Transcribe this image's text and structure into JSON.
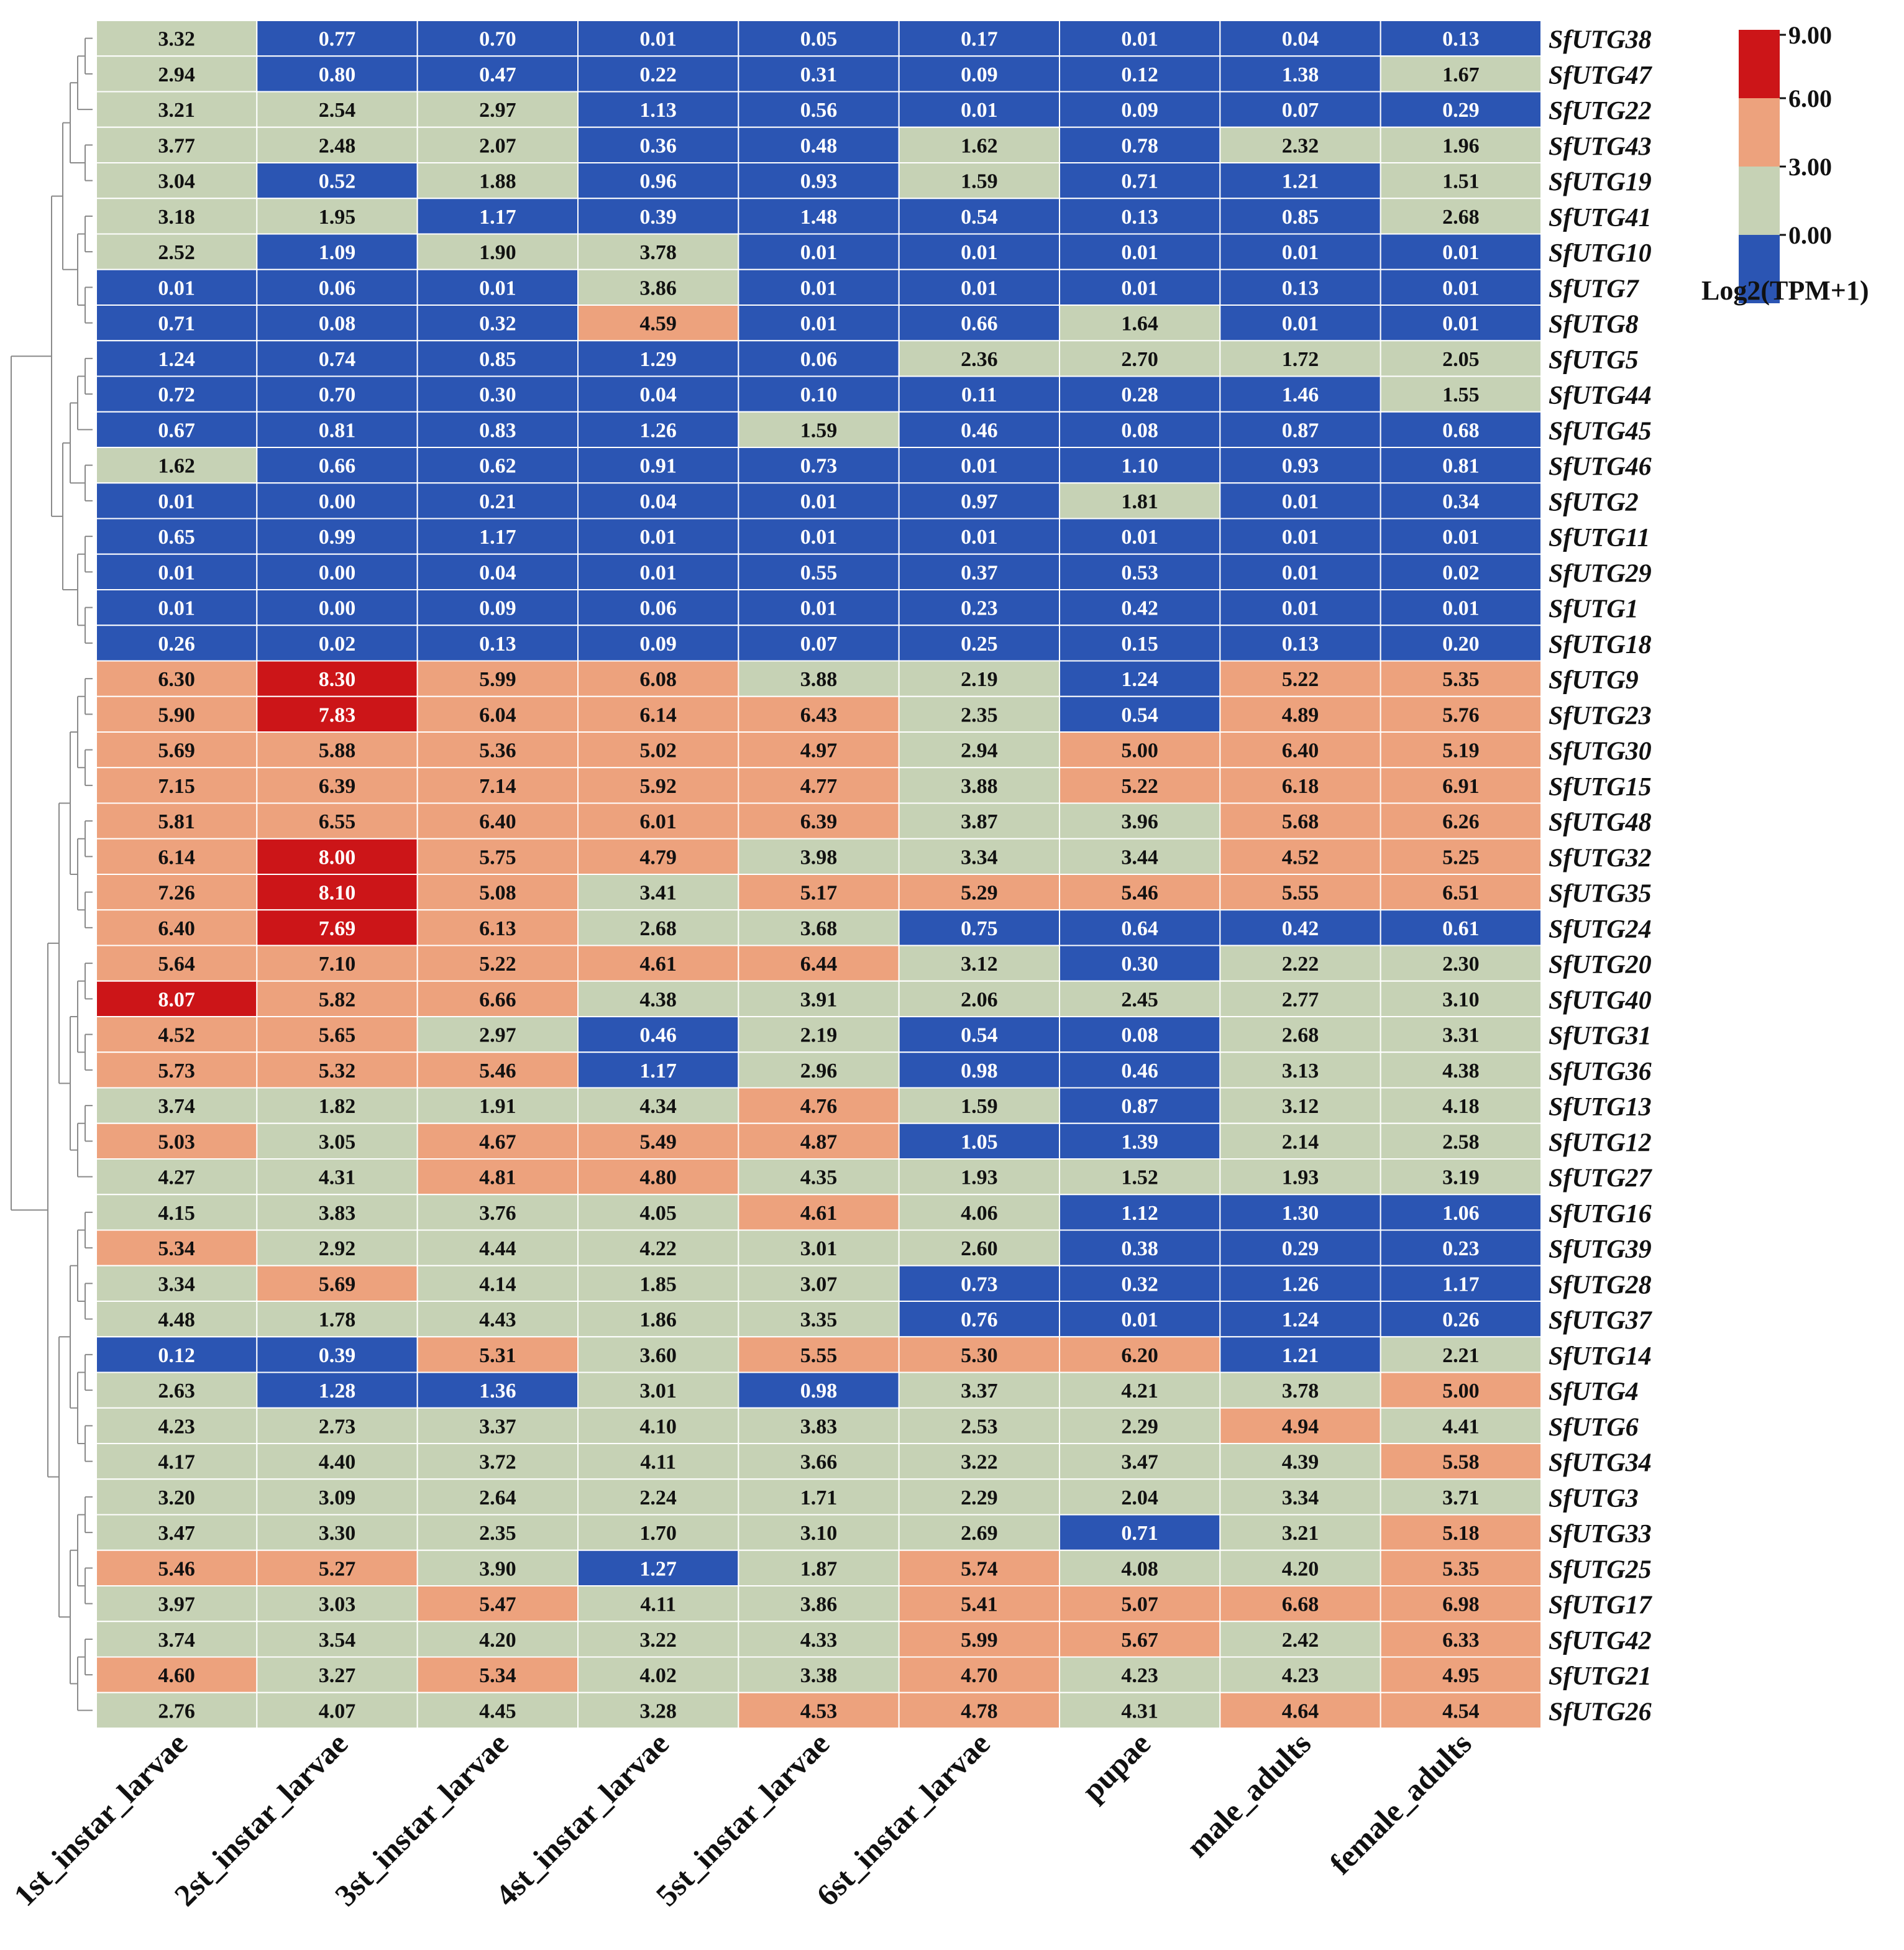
{
  "chart_data": {
    "type": "heatmap",
    "title": "",
    "rows": [
      "SfUTG38",
      "SfUTG47",
      "SfUTG22",
      "SfUTG43",
      "SfUTG19",
      "SfUTG41",
      "SfUTG10",
      "SfUTG7",
      "SfUTG8",
      "SfUTG5",
      "SfUTG44",
      "SfUTG45",
      "SfUTG46",
      "SfUTG2",
      "SfUTG11",
      "SfUTG29",
      "SfUTG1",
      "SfUTG18",
      "SfUTG9",
      "SfUTG23",
      "SfUTG30",
      "SfUTG15",
      "SfUTG48",
      "SfUTG32",
      "SfUTG35",
      "SfUTG24",
      "SfUTG20",
      "SfUTG40",
      "SfUTG31",
      "SfUTG36",
      "SfUTG13",
      "SfUTG12",
      "SfUTG27",
      "SfUTG16",
      "SfUTG39",
      "SfUTG28",
      "SfUTG37",
      "SfUTG14",
      "SfUTG4",
      "SfUTG6",
      "SfUTG34",
      "SfUTG3",
      "SfUTG33",
      "SfUTG25",
      "SfUTG17",
      "SfUTG42",
      "SfUTG21",
      "SfUTG26"
    ],
    "columns": [
      "1st_instar_larvae",
      "2st_instar_larvae",
      "3st_instar_larvae",
      "4st_instar_larvae",
      "5st_instar_larvae",
      "6st_instar_larvae",
      "pupae",
      "male_adults",
      "female_adults"
    ],
    "values": [
      [
        "3.32",
        "0.77",
        "0.70",
        "0.01",
        "0.05",
        "0.17",
        "0.01",
        "0.04",
        "0.13"
      ],
      [
        "2.94",
        "0.80",
        "0.47",
        "0.22",
        "0.31",
        "0.09",
        "0.12",
        "1.38",
        "1.67"
      ],
      [
        "3.21",
        "2.54",
        "2.97",
        "1.13",
        "0.56",
        "0.01",
        "0.09",
        "0.07",
        "0.29"
      ],
      [
        "3.77",
        "2.48",
        "2.07",
        "0.36",
        "0.48",
        "1.62",
        "0.78",
        "2.32",
        "1.96"
      ],
      [
        "3.04",
        "0.52",
        "1.88",
        "0.96",
        "0.93",
        "1.59",
        "0.71",
        "1.21",
        "1.51"
      ],
      [
        "3.18",
        "1.95",
        "1.17",
        "0.39",
        "1.48",
        "0.54",
        "0.13",
        "0.85",
        "2.68"
      ],
      [
        "2.52",
        "1.09",
        "1.90",
        "3.78",
        "0.01",
        "0.01",
        "0.01",
        "0.01",
        "0.01"
      ],
      [
        "0.01",
        "0.06",
        "0.01",
        "3.86",
        "0.01",
        "0.01",
        "0.01",
        "0.13",
        "0.01"
      ],
      [
        "0.71",
        "0.08",
        "0.32",
        "4.59",
        "0.01",
        "0.66",
        "1.64",
        "0.01",
        "0.01"
      ],
      [
        "1.24",
        "0.74",
        "0.85",
        "1.29",
        "0.06",
        "2.36",
        "2.70",
        "1.72",
        "2.05"
      ],
      [
        "0.72",
        "0.70",
        "0.30",
        "0.04",
        "0.10",
        "0.11",
        "0.28",
        "1.46",
        "1.55"
      ],
      [
        "0.67",
        "0.81",
        "0.83",
        "1.26",
        "1.59",
        "0.46",
        "0.08",
        "0.87",
        "0.68"
      ],
      [
        "1.62",
        "0.66",
        "0.62",
        "0.91",
        "0.73",
        "0.01",
        "1.10",
        "0.93",
        "0.81"
      ],
      [
        "0.01",
        "0.00",
        "0.21",
        "0.04",
        "0.01",
        "0.97",
        "1.81",
        "0.01",
        "0.34"
      ],
      [
        "0.65",
        "0.99",
        "1.17",
        "0.01",
        "0.01",
        "0.01",
        "0.01",
        "0.01",
        "0.01"
      ],
      [
        "0.01",
        "0.00",
        "0.04",
        "0.01",
        "0.55",
        "0.37",
        "0.53",
        "0.01",
        "0.02"
      ],
      [
        "0.01",
        "0.00",
        "0.09",
        "0.06",
        "0.01",
        "0.23",
        "0.42",
        "0.01",
        "0.01"
      ],
      [
        "0.26",
        "0.02",
        "0.13",
        "0.09",
        "0.07",
        "0.25",
        "0.15",
        "0.13",
        "0.20"
      ],
      [
        "6.30",
        "8.30",
        "5.99",
        "6.08",
        "3.88",
        "2.19",
        "1.24",
        "5.22",
        "5.35"
      ],
      [
        "5.90",
        "7.83",
        "6.04",
        "6.14",
        "6.43",
        "2.35",
        "0.54",
        "4.89",
        "5.76"
      ],
      [
        "5.69",
        "5.88",
        "5.36",
        "5.02",
        "4.97",
        "2.94",
        "5.00",
        "6.40",
        "5.19"
      ],
      [
        "7.15",
        "6.39",
        "7.14",
        "5.92",
        "4.77",
        "3.88",
        "5.22",
        "6.18",
        "6.91"
      ],
      [
        "5.81",
        "6.55",
        "6.40",
        "6.01",
        "6.39",
        "3.87",
        "3.96",
        "5.68",
        "6.26"
      ],
      [
        "6.14",
        "8.00",
        "5.75",
        "4.79",
        "3.98",
        "3.34",
        "3.44",
        "4.52",
        "5.25"
      ],
      [
        "7.26",
        "8.10",
        "5.08",
        "3.41",
        "5.17",
        "5.29",
        "5.46",
        "5.55",
        "6.51"
      ],
      [
        "6.40",
        "7.69",
        "6.13",
        "2.68",
        "3.68",
        "0.75",
        "0.64",
        "0.42",
        "0.61"
      ],
      [
        "5.64",
        "7.10",
        "5.22",
        "4.61",
        "6.44",
        "3.12",
        "0.30",
        "2.22",
        "2.30"
      ],
      [
        "8.07",
        "5.82",
        "6.66",
        "4.38",
        "3.91",
        "2.06",
        "2.45",
        "2.77",
        "3.10"
      ],
      [
        "4.52",
        "5.65",
        "2.97",
        "0.46",
        "2.19",
        "0.54",
        "0.08",
        "2.68",
        "3.31"
      ],
      [
        "5.73",
        "5.32",
        "5.46",
        "1.17",
        "2.96",
        "0.98",
        "0.46",
        "3.13",
        "4.38"
      ],
      [
        "3.74",
        "1.82",
        "1.91",
        "4.34",
        "4.76",
        "1.59",
        "0.87",
        "3.12",
        "4.18"
      ],
      [
        "5.03",
        "3.05",
        "4.67",
        "5.49",
        "4.87",
        "1.05",
        "1.39",
        "2.14",
        "2.58"
      ],
      [
        "4.27",
        "4.31",
        "4.81",
        "4.80",
        "4.35",
        "1.93",
        "1.52",
        "1.93",
        "3.19"
      ],
      [
        "4.15",
        "3.83",
        "3.76",
        "4.05",
        "4.61",
        "4.06",
        "1.12",
        "1.30",
        "1.06"
      ],
      [
        "5.34",
        "2.92",
        "4.44",
        "4.22",
        "3.01",
        "2.60",
        "0.38",
        "0.29",
        "0.23"
      ],
      [
        "3.34",
        "5.69",
        "4.14",
        "1.85",
        "3.07",
        "0.73",
        "0.32",
        "1.26",
        "1.17"
      ],
      [
        "4.48",
        "1.78",
        "4.43",
        "1.86",
        "3.35",
        "0.76",
        "0.01",
        "1.24",
        "0.26"
      ],
      [
        "0.12",
        "0.39",
        "5.31",
        "3.60",
        "5.55",
        "5.30",
        "6.20",
        "1.21",
        "2.21"
      ],
      [
        "2.63",
        "1.28",
        "1.36",
        "3.01",
        "0.98",
        "3.37",
        "4.21",
        "3.78",
        "5.00"
      ],
      [
        "4.23",
        "2.73",
        "3.37",
        "4.10",
        "3.83",
        "2.53",
        "2.29",
        "4.94",
        "4.41"
      ],
      [
        "4.17",
        "4.40",
        "3.72",
        "4.11",
        "3.66",
        "3.22",
        "3.47",
        "4.39",
        "5.58"
      ],
      [
        "3.20",
        "3.09",
        "2.64",
        "2.24",
        "1.71",
        "2.29",
        "2.04",
        "3.34",
        "3.71"
      ],
      [
        "3.47",
        "3.30",
        "2.35",
        "1.70",
        "3.10",
        "2.69",
        "0.71",
        "3.21",
        "5.18"
      ],
      [
        "5.46",
        "5.27",
        "3.90",
        "1.27",
        "1.87",
        "5.74",
        "4.08",
        "4.20",
        "5.35"
      ],
      [
        "3.97",
        "3.03",
        "5.47",
        "4.11",
        "3.86",
        "5.41",
        "5.07",
        "6.68",
        "6.98"
      ],
      [
        "3.74",
        "3.54",
        "4.20",
        "3.22",
        "4.33",
        "5.99",
        "5.67",
        "2.42",
        "6.33"
      ],
      [
        "4.60",
        "3.27",
        "5.34",
        "4.02",
        "3.38",
        "4.70",
        "4.23",
        "4.23",
        "4.95"
      ],
      [
        "2.76",
        "4.07",
        "4.45",
        "3.28",
        "4.53",
        "4.78",
        "4.31",
        "4.64",
        "4.54"
      ]
    ],
    "color_bins": [
      {
        "min": 0,
        "max": 1.5,
        "color": "#2b55b3"
      },
      {
        "min": 1.5,
        "max": 4.5,
        "color": "#c6d2b5"
      },
      {
        "min": 4.5,
        "max": 7.5,
        "color": "#eda27d"
      },
      {
        "min": 7.5,
        "max": 9,
        "color": "#cc1518"
      }
    ],
    "grid_line_color": "#ffffff",
    "legend": {
      "title": "Log2(TPM+1)",
      "ticks": [
        "9.00",
        "6.00",
        "3.00",
        "0.00"
      ],
      "colors": [
        "#cc1518",
        "#eda27d",
        "#c6d2b5",
        "#2b55b3"
      ],
      "placement": "top-right"
    },
    "dendrogram_side": "left",
    "dendrogram_color": "#8a8a8a"
  }
}
